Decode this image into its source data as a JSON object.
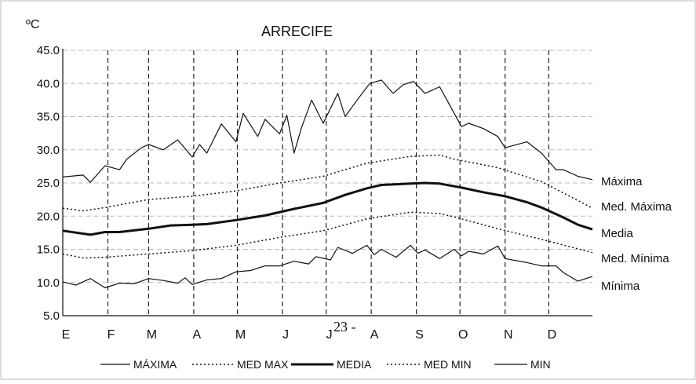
{
  "chart_data": {
    "type": "line",
    "title": "ARRECIFE",
    "unit": "ºC",
    "ylim": [
      5,
      45
    ],
    "y_ticks": [
      "45.0",
      "40.0",
      "35.0",
      "30.0",
      "25.0",
      "20.0",
      "15.0",
      "10.0",
      "5.0"
    ],
    "x_ticks": [
      "E",
      "F",
      "M",
      "A",
      "M",
      "J",
      "J",
      "A",
      "S",
      "O",
      "N",
      "D"
    ],
    "x_range_days": [
      1,
      365
    ],
    "grid": "horizontal dashed; vertical dashed month separators",
    "legend": "bottom",
    "legend_entries": [
      "MÁXIMA",
      "MED MAX",
      "MEDIA",
      "MED MIN",
      "MIN"
    ],
    "end_labels": [
      "Máxima",
      "Med. Máxima",
      "Media",
      "Med. Mínima",
      "Mínima"
    ],
    "page_number": "23 -",
    "series": [
      {
        "name": "MÁXIMA",
        "style": "thin",
        "x": [
          1,
          15,
          20,
          30,
          40,
          45,
          55,
          60,
          70,
          80,
          90,
          95,
          100,
          110,
          120,
          125,
          135,
          140,
          150,
          155,
          160,
          165,
          172,
          180,
          190,
          195,
          200,
          205,
          212,
          220,
          228,
          235,
          242,
          250,
          260,
          265,
          275,
          280,
          290,
          300,
          305,
          320,
          330,
          340,
          345,
          355,
          365
        ],
        "y": [
          25.9,
          26.2,
          25.1,
          27.6,
          27.0,
          28.6,
          30.3,
          30.8,
          30.0,
          31.5,
          28.9,
          30.8,
          29.5,
          33.9,
          31.2,
          35.5,
          32.0,
          34.6,
          32.4,
          35.2,
          29.5,
          33.3,
          37.5,
          34.0,
          38.5,
          35.0,
          36.5,
          38.0,
          40.0,
          40.5,
          38.5,
          39.8,
          40.3,
          38.5,
          39.5,
          37.5,
          33.5,
          34.0,
          33.2,
          32.0,
          30.3,
          31.2,
          29.5,
          27.0,
          27.0,
          26.0,
          25.5
        ]
      },
      {
        "name": "MED MAX",
        "style": "dotted",
        "x": [
          1,
          15,
          30,
          60,
          90,
          120,
          150,
          180,
          210,
          240,
          260,
          270,
          300,
          330,
          365
        ],
        "y": [
          21.2,
          20.8,
          21.3,
          22.5,
          23.0,
          23.8,
          25.0,
          26.0,
          28.0,
          29.0,
          29.2,
          28.6,
          27.3,
          25.2,
          21.2
        ]
      },
      {
        "name": "MEDIA",
        "style": "thick",
        "x": [
          1,
          20,
          30,
          40,
          60,
          75,
          90,
          100,
          120,
          140,
          160,
          180,
          195,
          210,
          220,
          240,
          250,
          260,
          275,
          290,
          305,
          320,
          330,
          345,
          355,
          365
        ],
        "y": [
          17.8,
          17.2,
          17.6,
          17.6,
          18.1,
          18.6,
          18.7,
          18.8,
          19.4,
          20.1,
          21.1,
          22.0,
          23.2,
          24.2,
          24.7,
          24.9,
          25.0,
          24.9,
          24.3,
          23.6,
          23.0,
          22.1,
          21.3,
          19.8,
          18.7,
          18.0
        ]
      },
      {
        "name": "MED MIN",
        "style": "dotted",
        "x": [
          1,
          15,
          30,
          60,
          90,
          120,
          150,
          180,
          210,
          240,
          260,
          270,
          300,
          330,
          365
        ],
        "y": [
          14.3,
          13.7,
          13.8,
          14.3,
          14.8,
          15.6,
          16.8,
          17.8,
          19.6,
          20.6,
          20.4,
          19.9,
          18.1,
          16.5,
          14.5
        ]
      },
      {
        "name": "MIN",
        "style": "thin",
        "x": [
          1,
          10,
          20,
          30,
          40,
          50,
          60,
          70,
          80,
          85,
          90,
          100,
          110,
          120,
          130,
          140,
          150,
          160,
          170,
          175,
          185,
          190,
          200,
          210,
          215,
          220,
          230,
          240,
          245,
          250,
          260,
          270,
          275,
          280,
          290,
          300,
          305,
          320,
          330,
          340,
          345,
          355,
          365
        ],
        "y": [
          10.1,
          9.6,
          10.6,
          9.2,
          9.9,
          9.8,
          10.6,
          10.3,
          9.9,
          10.7,
          9.7,
          10.4,
          10.6,
          11.6,
          11.8,
          12.5,
          12.5,
          13.2,
          12.8,
          13.9,
          13.4,
          15.3,
          14.4,
          15.6,
          14.2,
          15.0,
          13.8,
          15.6,
          14.4,
          14.9,
          13.6,
          15.0,
          14.0,
          14.7,
          14.3,
          15.5,
          13.6,
          13.0,
          12.5,
          12.5,
          11.5,
          10.2,
          10.9
        ]
      }
    ]
  }
}
